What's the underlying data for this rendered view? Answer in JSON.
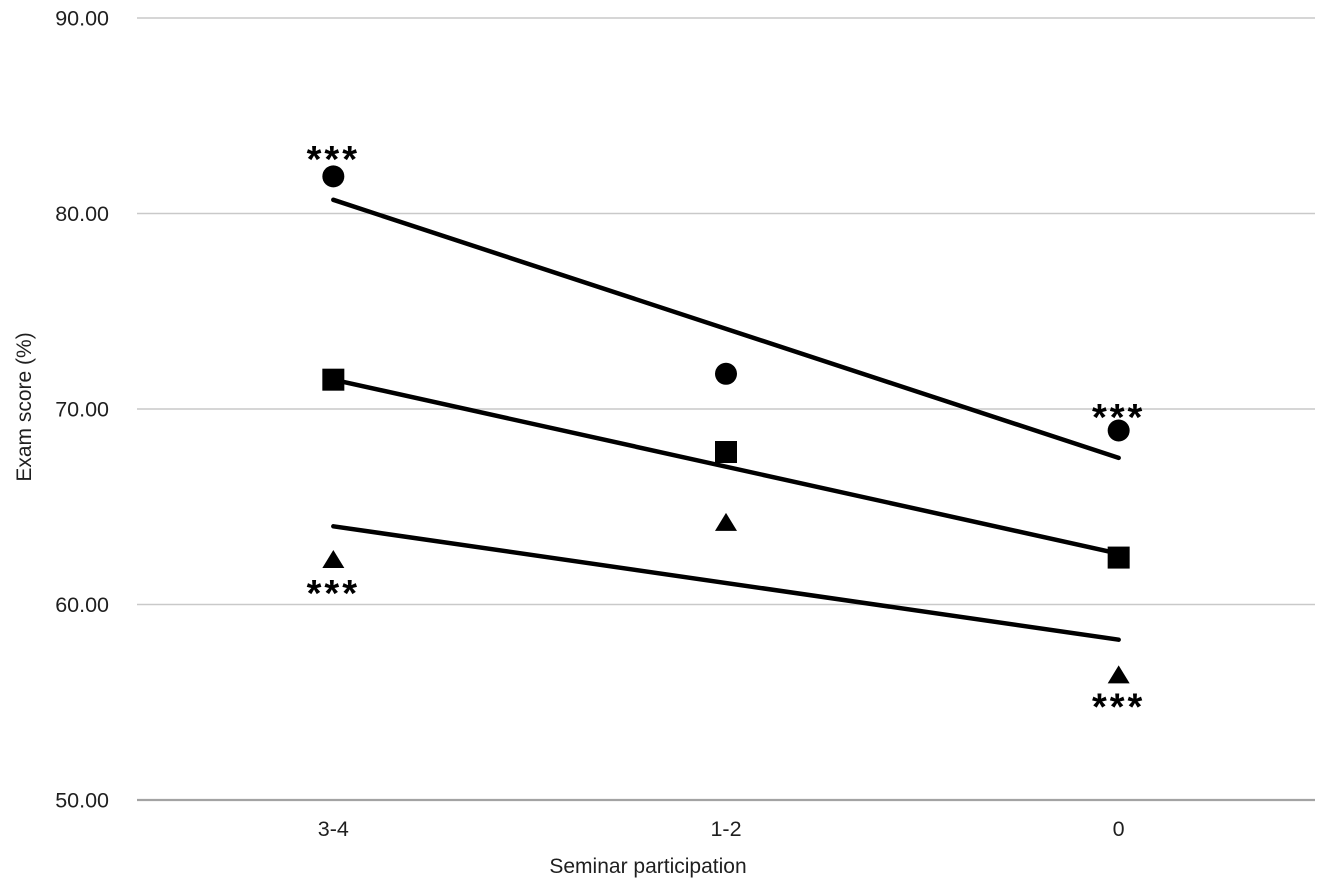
{
  "figure": {
    "background": "#ffffff"
  },
  "chart_data": {
    "type": "scatter",
    "title": "",
    "xlabel": "Seminar participation",
    "ylabel": "Exam score (%)",
    "categories": [
      "3-4",
      "1-2",
      "0"
    ],
    "ylim": [
      50,
      90
    ],
    "yticks": [
      {
        "value": 90,
        "label": "90.00"
      },
      {
        "value": 80,
        "label": "80.00"
      },
      {
        "value": 70,
        "label": "70.00"
      },
      {
        "value": 60,
        "label": "60.00"
      },
      {
        "value": 50,
        "label": "50.00"
      }
    ],
    "grid": "horizontal",
    "legend": "none",
    "series": [
      {
        "name": "circle-series",
        "marker": "circle",
        "color": "#000000",
        "values": [
          81.9,
          71.8,
          68.9
        ],
        "trendline": {
          "start_value": 80.7,
          "end_value": 67.5
        }
      },
      {
        "name": "square-series",
        "marker": "square",
        "color": "#000000",
        "values": [
          71.5,
          67.8,
          62.4
        ],
        "trendline": {
          "start_value": 71.5,
          "end_value": 62.6
        }
      },
      {
        "name": "triangle-series",
        "marker": "triangle",
        "color": "#000000",
        "values": [
          62.3,
          64.2,
          56.4
        ],
        "trendline": {
          "start_value": 64.0,
          "end_value": 58.2
        }
      }
    ],
    "annotations": [
      {
        "text": "***",
        "attached_to": "circle at 3-4",
        "placement": "above-marker",
        "category_index": 0,
        "value": 83.1
      },
      {
        "text": "***",
        "attached_to": "circle at 0",
        "placement": "above-marker",
        "category_index": 2,
        "value": 69.9
      },
      {
        "text": "***",
        "attached_to": "triangle at 3-4",
        "placement": "below-marker",
        "category_index": 0,
        "value": 60.9
      },
      {
        "text": "***",
        "attached_to": "triangle at 0",
        "placement": "below-marker",
        "category_index": 2,
        "value": 55.1
      }
    ],
    "colors": {
      "marker": "#000000",
      "trendline": "#000000",
      "gridline": "#c9c9c9",
      "axis_line": "#a3a3a3",
      "label_text": "#1f1f1f"
    }
  }
}
